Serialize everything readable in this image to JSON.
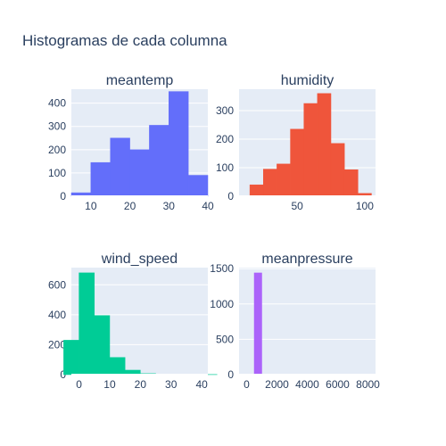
{
  "title": "Histogramas de cada columna",
  "chart_data": [
    {
      "type": "bar",
      "title": "meantemp",
      "color": "#636efa",
      "bin_edges": [
        5,
        10,
        15,
        20,
        25,
        30,
        35,
        40
      ],
      "values": [
        15,
        145,
        250,
        200,
        305,
        450,
        90
      ],
      "xlim": [
        5,
        40
      ],
      "ylim": [
        0,
        460
      ],
      "xticks": [
        10,
        20,
        30,
        40
      ],
      "yticks": [
        0,
        100,
        200,
        300,
        400
      ]
    },
    {
      "type": "bar",
      "title": "humidity",
      "color": "#ef553b",
      "bin_edges": [
        15,
        25,
        35,
        45,
        55,
        65,
        75,
        85,
        95,
        105
      ],
      "values": [
        40,
        95,
        113,
        235,
        325,
        360,
        185,
        93,
        10
      ],
      "xlim": [
        7,
        108
      ],
      "ylim": [
        0,
        375
      ],
      "xticks": [
        50,
        100
      ],
      "yticks": [
        0,
        100,
        200,
        300
      ]
    },
    {
      "type": "bar",
      "title": "wind_speed",
      "color": "#00cc96",
      "bin_edges": [
        -5,
        0,
        5,
        10,
        15,
        20,
        25,
        30,
        35,
        40,
        45
      ],
      "values": [
        230,
        680,
        395,
        115,
        30,
        7,
        2,
        1,
        0,
        1
      ],
      "xlim": [
        -2.5,
        42
      ],
      "ylim": [
        0,
        715
      ],
      "xticks": [
        0,
        10,
        20,
        30,
        40
      ],
      "yticks": [
        0,
        200,
        400,
        600
      ]
    },
    {
      "type": "bar",
      "title": "meanpressure",
      "color": "#ab63fa",
      "bin_edges": [
        0,
        500,
        1000,
        1500,
        2000,
        2500,
        3000,
        3500,
        4000,
        4500,
        5000,
        5500,
        6000,
        6500,
        7000,
        7500,
        8000
      ],
      "values": [
        2,
        1440,
        0,
        0,
        0,
        0,
        0,
        0,
        0,
        0,
        0,
        0,
        0,
        0,
        0,
        0
      ],
      "xlim": [
        -500,
        8500
      ],
      "ylim": [
        0,
        1515
      ],
      "xticks": [
        0,
        2000,
        4000,
        6000,
        8000
      ],
      "yticks": [
        0,
        500,
        1000,
        1500
      ]
    }
  ]
}
